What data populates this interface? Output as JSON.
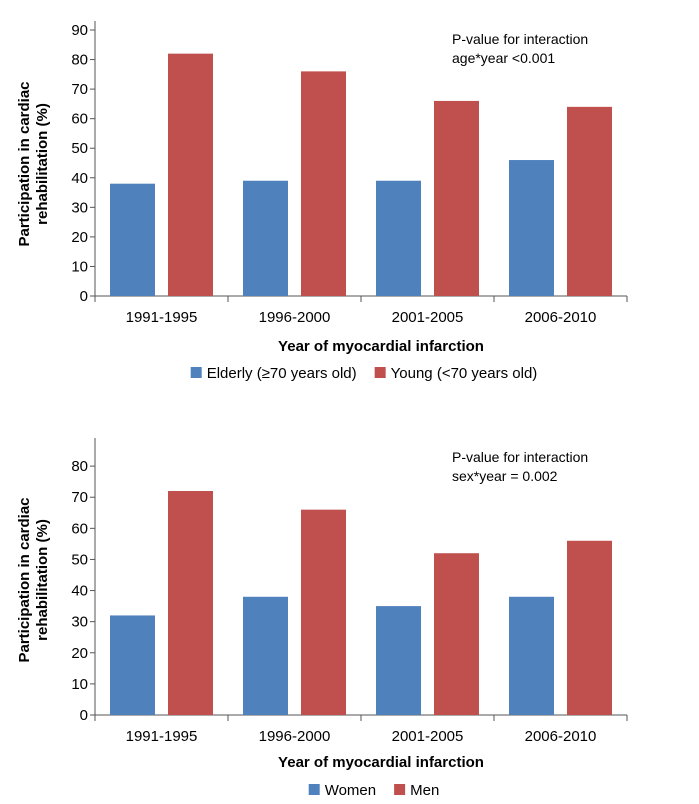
{
  "chart_data": [
    {
      "type": "bar",
      "categories": [
        "1991-1995",
        "1996-2000",
        "2001-2005",
        "2006-2010"
      ],
      "series": [
        {
          "name": "Elderly (≥70 years old)",
          "values": [
            38,
            39,
            39,
            46
          ],
          "color": "#4f81bd"
        },
        {
          "name": "Young (<70 years old)",
          "values": [
            82,
            76,
            66,
            64
          ],
          "color": "#c0504d"
        }
      ],
      "title": "",
      "xlabel": "Year of myocardial infarction",
      "ylabel_lines": [
        "Participation in cardiac",
        "rehabilitation (%)"
      ],
      "ylim": [
        0,
        90
      ],
      "yticks": [
        0,
        10,
        20,
        30,
        40,
        50,
        60,
        70,
        80,
        90
      ],
      "annotation_lines": [
        "P-value for interaction",
        "age*year <0.001"
      ],
      "legend_position": "bottom"
    },
    {
      "type": "bar",
      "categories": [
        "1991-1995",
        "1996-2000",
        "2001-2005",
        "2006-2010"
      ],
      "series": [
        {
          "name": "Women",
          "values": [
            32,
            38,
            35,
            38
          ],
          "color": "#4f81bd"
        },
        {
          "name": "Men",
          "values": [
            72,
            66,
            52,
            56
          ],
          "color": "#c0504d"
        }
      ],
      "title": "",
      "xlabel": "Year of myocardial infarction",
      "ylabel_lines": [
        "Participation in cardiac",
        "rehabilitation (%)"
      ],
      "ylim": [
        0,
        90
      ],
      "yticks": [
        0,
        10,
        20,
        30,
        40,
        50,
        60,
        70,
        80
      ],
      "annotation_lines": [
        "P-value for interaction",
        "sex*year = 0.002"
      ],
      "legend_position": "bottom"
    }
  ]
}
